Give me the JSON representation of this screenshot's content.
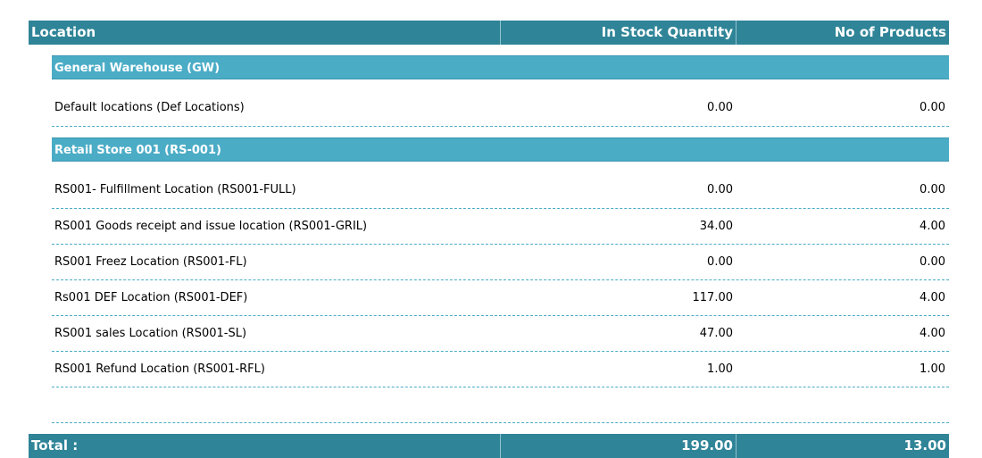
{
  "table": {
    "headers": {
      "location": "Location",
      "in_stock_quantity": "In Stock Quantity",
      "no_of_products": "No of Products"
    },
    "groups": [
      {
        "name": "General Warehouse (GW)",
        "rows": [
          {
            "location": "Default locations (Def Locations)",
            "qty": "0.00",
            "products": "0.00"
          }
        ]
      },
      {
        "name": "Retail Store 001 (RS-001)",
        "rows": [
          {
            "location": "RS001- Fulfillment Location (RS001-FULL)",
            "qty": "0.00",
            "products": "0.00"
          },
          {
            "location": "RS001 Goods receipt and issue location (RS001-GRIL)",
            "qty": "34.00",
            "products": "4.00"
          },
          {
            "location": "RS001 Freez Location (RS001-FL)",
            "qty": "0.00",
            "products": "0.00"
          },
          {
            "location": "Rs001 DEF Location (RS001-DEF)",
            "qty": "117.00",
            "products": "4.00"
          },
          {
            "location": "RS001 sales Location (RS001-SL)",
            "qty": "47.00",
            "products": "4.00"
          },
          {
            "location": "RS001 Refund Location (RS001-RFL)",
            "qty": "1.00",
            "products": "1.00"
          }
        ]
      }
    ],
    "total": {
      "label": "Total :",
      "qty": "199.00",
      "products": "13.00"
    }
  },
  "colors": {
    "header_bg": "#2f8497",
    "group_bg": "#4bacc6",
    "row_separator": "#4bacc6"
  }
}
